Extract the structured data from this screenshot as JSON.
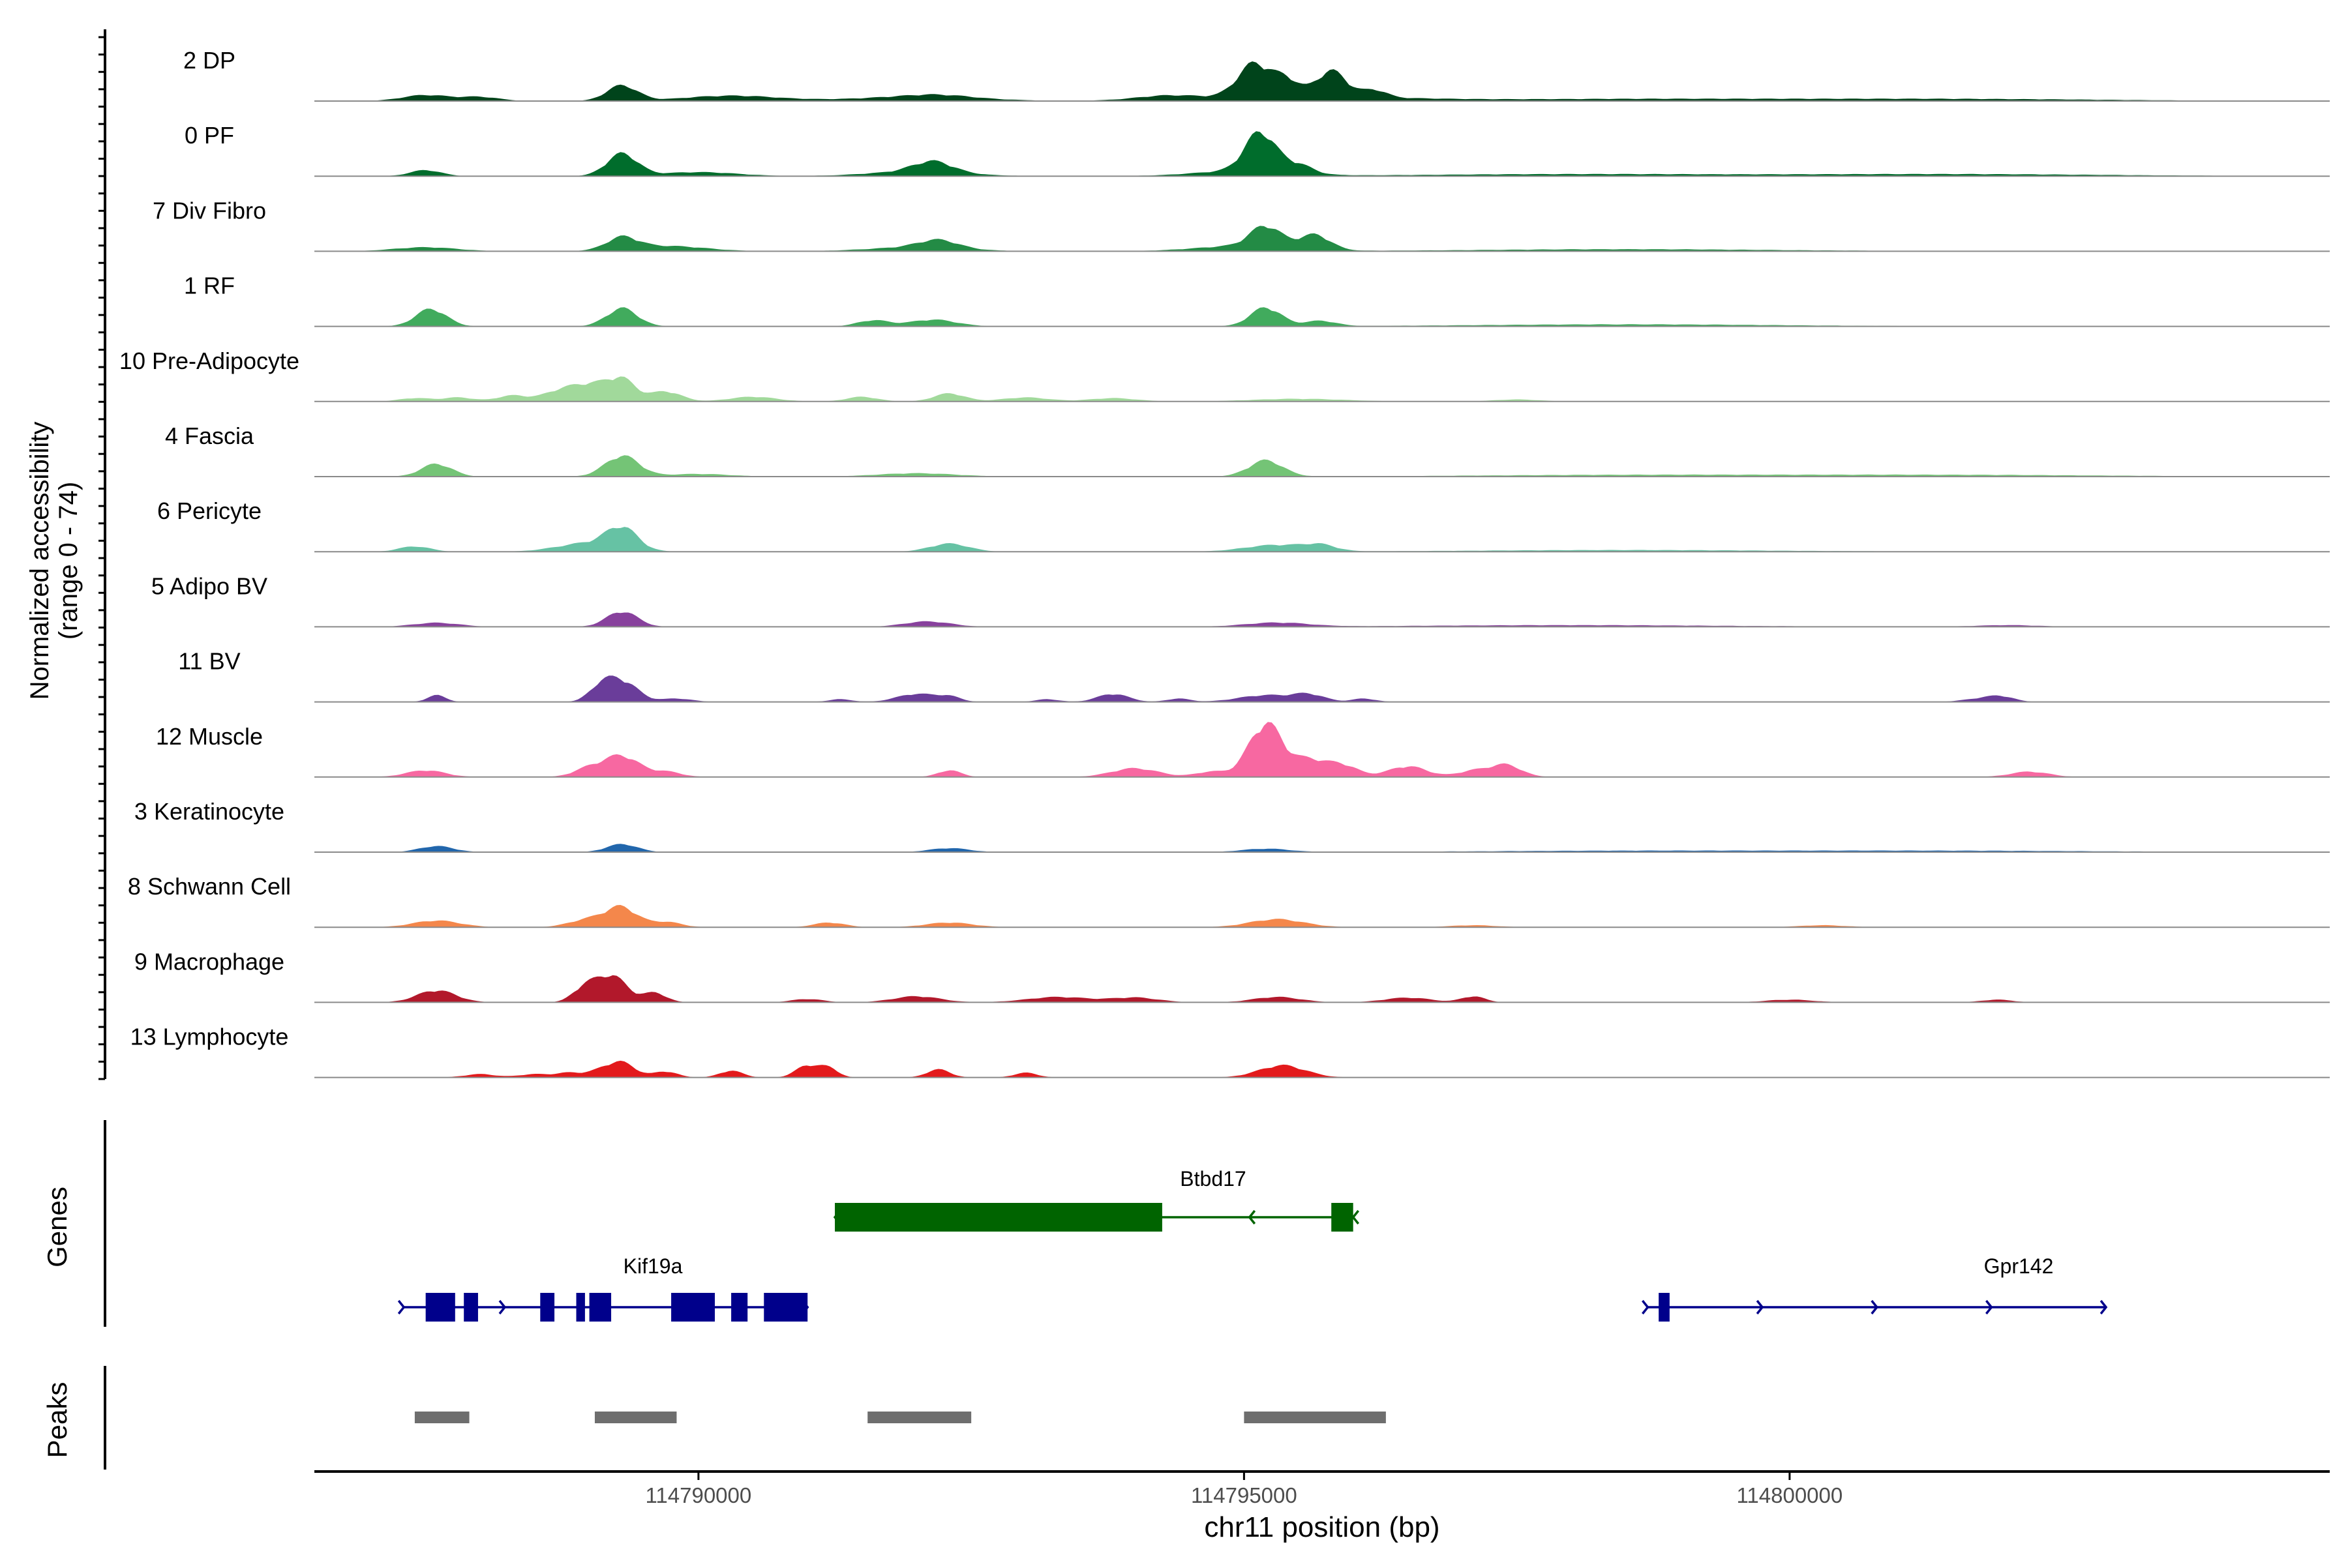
{
  "chart_data": {
    "type": "area",
    "title": "",
    "ylabel_line1": "Normalized accessibility",
    "ylabel_line2": "(range 0 - 74)",
    "yrange": [
      0,
      74
    ],
    "xlabel": "chr11 position (bp)",
    "xlim": [
      114786480,
      114804950
    ],
    "xticks": [
      {
        "value": 114790000,
        "label": "114790000"
      },
      {
        "value": 114795000,
        "label": "114795000"
      },
      {
        "value": 114800000,
        "label": "114800000"
      }
    ],
    "tracks": [
      {
        "name": "2 DP",
        "color": "#00441b",
        "peaks": [
          [
            114787500,
            0.9,
            300
          ],
          [
            114788000,
            0.6,
            250
          ],
          [
            114790300,
            0.8,
            600
          ],
          [
            114792000,
            0.6,
            800
          ],
          [
            114792200,
            0.4,
            400
          ],
          [
            114795500,
            0.7,
            1200
          ],
          [
            114789300,
            2.3,
            200
          ],
          [
            114795100,
            5.0,
            220
          ],
          [
            114795400,
            2.2,
            150
          ],
          [
            114795800,
            3.8,
            200
          ],
          [
            114796200,
            1.1,
            150
          ],
          [
            114794300,
            0.6,
            400
          ],
          [
            114798500,
            0.3,
            2000
          ],
          [
            114801500,
            0.3,
            2000
          ]
        ]
      },
      {
        "name": "0 PF",
        "color": "#006d2c",
        "peaks": [
          [
            114787500,
            0.9,
            200
          ],
          [
            114790000,
            0.6,
            500
          ],
          [
            114792000,
            0.7,
            600
          ],
          [
            114795000,
            0.8,
            600
          ],
          [
            114789300,
            3.3,
            200
          ],
          [
            114792150,
            1.6,
            250
          ],
          [
            114795150,
            5.8,
            200
          ],
          [
            114795500,
            1.3,
            180
          ],
          [
            114798000,
            0.3,
            2000
          ],
          [
            114801500,
            0.3,
            2000
          ]
        ]
      },
      {
        "name": "7 Div Fibro",
        "color": "#238b45",
        "peaks": [
          [
            114787500,
            0.6,
            400
          ],
          [
            114789700,
            0.8,
            500
          ],
          [
            114792000,
            0.6,
            600
          ],
          [
            114795000,
            0.8,
            600
          ],
          [
            114789300,
            1.8,
            200
          ],
          [
            114792200,
            1.2,
            250
          ],
          [
            114795200,
            3.1,
            200
          ],
          [
            114795650,
            2.2,
            200
          ],
          [
            114798500,
            0.3,
            2000
          ]
        ]
      },
      {
        "name": "1 RF",
        "color": "#41ab5d",
        "peaks": [
          [
            114789300,
            2.7,
            200
          ],
          [
            114787550,
            2.6,
            200
          ],
          [
            114795200,
            2.8,
            200
          ],
          [
            114792150,
            1.0,
            300
          ],
          [
            114791600,
            0.9,
            200
          ],
          [
            114795700,
            0.8,
            200
          ],
          [
            114798500,
            0.3,
            2000
          ]
        ]
      },
      {
        "name": "10 Pre-Adipocyte",
        "color": "#a1d99b",
        "peaks": [
          [
            114789000,
            2.5,
            250
          ],
          [
            114789300,
            3.0,
            180
          ],
          [
            114789700,
            1.5,
            200
          ],
          [
            114788300,
            0.9,
            200
          ],
          [
            114788700,
            1.2,
            200
          ],
          [
            114787800,
            0.6,
            200
          ],
          [
            114787400,
            0.5,
            200
          ],
          [
            114790500,
            0.7,
            300
          ],
          [
            114791500,
            0.7,
            200
          ],
          [
            114792300,
            1.2,
            200
          ],
          [
            114793000,
            0.6,
            300
          ],
          [
            114793800,
            0.5,
            300
          ],
          [
            114795500,
            0.4,
            600
          ],
          [
            114797500,
            0.3,
            300
          ]
        ]
      },
      {
        "name": "4 Fascia",
        "color": "#74c476",
        "peaks": [
          [
            114787600,
            1.9,
            200
          ],
          [
            114789300,
            3.1,
            220
          ],
          [
            114795200,
            2.4,
            220
          ],
          [
            114792000,
            0.5,
            500
          ],
          [
            114790000,
            0.4,
            400
          ],
          [
            114798500,
            0.25,
            2000
          ],
          [
            114801500,
            0.25,
            2000
          ]
        ]
      },
      {
        "name": "6 Pericyte",
        "color": "#66c2a4",
        "peaks": [
          [
            114787400,
            0.8,
            200
          ],
          [
            114789000,
            1.3,
            400
          ],
          [
            114789300,
            3.1,
            200
          ],
          [
            114792300,
            1.2,
            250
          ],
          [
            114795300,
            1.0,
            400
          ],
          [
            114795700,
            0.8,
            200
          ],
          [
            114798500,
            0.25,
            2000
          ]
        ]
      },
      {
        "name": "5 Adipo BV",
        "color": "#88419d",
        "peaks": [
          [
            114787600,
            0.6,
            300
          ],
          [
            114789300,
            2.3,
            200
          ],
          [
            114792100,
            0.8,
            300
          ],
          [
            114795300,
            0.6,
            400
          ],
          [
            114798000,
            0.25,
            2000
          ],
          [
            114802000,
            0.25,
            400
          ]
        ]
      },
      {
        "name": "11 BV",
        "color": "#6a3d9a",
        "peaks": [
          [
            114787600,
            1.0,
            120
          ],
          [
            114789300,
            3.1,
            200
          ],
          [
            114789100,
            2.0,
            150
          ],
          [
            114789800,
            0.5,
            200
          ],
          [
            114791300,
            0.4,
            150
          ],
          [
            114792000,
            1.2,
            250
          ],
          [
            114792300,
            0.7,
            150
          ],
          [
            114793200,
            0.4,
            150
          ],
          [
            114793800,
            1.2,
            200
          ],
          [
            114794400,
            0.5,
            150
          ],
          [
            114795200,
            1.0,
            350
          ],
          [
            114795600,
            1.0,
            200
          ],
          [
            114796100,
            0.5,
            150
          ],
          [
            114801800,
            0.6,
            250
          ],
          [
            114801950,
            0.5,
            150
          ]
        ]
      },
      {
        "name": "12 Muscle",
        "color": "#f768a1",
        "peaks": [
          [
            114787500,
            1.0,
            250
          ],
          [
            114789300,
            3.1,
            220
          ],
          [
            114789000,
            1.3,
            200
          ],
          [
            114789700,
            0.8,
            200
          ],
          [
            114792300,
            1.0,
            150
          ],
          [
            114794000,
            1.3,
            300
          ],
          [
            114795200,
            8.0,
            220
          ],
          [
            114795600,
            2.4,
            200
          ],
          [
            114795900,
            1.8,
            200
          ],
          [
            114796500,
            1.6,
            250
          ],
          [
            114797100,
            0.9,
            200
          ],
          [
            114797400,
            1.8,
            200
          ],
          [
            114802200,
            0.8,
            250
          ],
          [
            114794700,
            0.8,
            200
          ]
        ]
      },
      {
        "name": "3 Keratinocyte",
        "color": "#2166ac",
        "peaks": [
          [
            114787600,
            0.9,
            220
          ],
          [
            114789300,
            1.2,
            200
          ],
          [
            114792300,
            0.6,
            250
          ],
          [
            114795200,
            0.5,
            300
          ],
          [
            114798500,
            0.2,
            2000
          ],
          [
            114801500,
            0.2,
            2000
          ]
        ]
      },
      {
        "name": "8 Schwann Cell",
        "color": "#f4874b",
        "peaks": [
          [
            114787600,
            1.0,
            300
          ],
          [
            114789300,
            2.8,
            200
          ],
          [
            114789000,
            1.2,
            250
          ],
          [
            114789700,
            0.8,
            200
          ],
          [
            114791200,
            0.7,
            200
          ],
          [
            114792300,
            0.7,
            300
          ],
          [
            114795300,
            1.2,
            350
          ],
          [
            114797100,
            0.3,
            300
          ],
          [
            114800300,
            0.3,
            300
          ]
        ]
      },
      {
        "name": "9 Macrophage",
        "color": "#b2182b",
        "peaks": [
          [
            114787600,
            1.8,
            250
          ],
          [
            114789200,
            4.0,
            200
          ],
          [
            114788950,
            2.0,
            150
          ],
          [
            114789600,
            1.4,
            150
          ],
          [
            114791000,
            0.5,
            200
          ],
          [
            114792000,
            0.9,
            300
          ],
          [
            114793300,
            0.8,
            400
          ],
          [
            114794000,
            0.7,
            300
          ],
          [
            114795300,
            0.8,
            300
          ],
          [
            114796500,
            0.7,
            300
          ],
          [
            114797100,
            0.9,
            150
          ],
          [
            114800000,
            0.4,
            300
          ],
          [
            114801900,
            0.4,
            200
          ]
        ]
      },
      {
        "name": "13 Lymphocyte",
        "color": "#e31a1c",
        "peaks": [
          [
            114788000,
            0.5,
            200
          ],
          [
            114788500,
            0.5,
            200
          ],
          [
            114789100,
            0.9,
            200
          ],
          [
            114789300,
            2.0,
            180
          ],
          [
            114789700,
            0.9,
            150
          ],
          [
            114790300,
            1.0,
            150
          ],
          [
            114791000,
            1.8,
            150
          ],
          [
            114791200,
            1.3,
            120
          ],
          [
            114792200,
            1.2,
            150
          ],
          [
            114793000,
            0.7,
            150
          ],
          [
            114795350,
            1.8,
            300
          ],
          [
            114788800,
            0.6,
            150
          ]
        ]
      }
    ],
    "genes": [
      {
        "name": "Btbd17",
        "strand": "-",
        "color": "#006400",
        "row": 1,
        "start": 114791250,
        "end": 114796000,
        "exons": [
          [
            114791250,
            114794250
          ],
          [
            114795800,
            114796000
          ]
        ]
      },
      {
        "name": "Kif19a",
        "strand": "+",
        "color": "#00008b",
        "row": 2,
        "start": 114787300,
        "end": 114791000,
        "exons": [
          [
            114787500,
            114787770
          ],
          [
            114787850,
            114787980
          ],
          [
            114788550,
            114788680
          ],
          [
            114788880,
            114788960
          ],
          [
            114789000,
            114789200
          ],
          [
            114789750,
            114790150
          ],
          [
            114790300,
            114790450
          ],
          [
            114790600,
            114791000
          ]
        ]
      },
      {
        "name": "Gpr142",
        "strand": "+",
        "color": "#00008b",
        "row": 2,
        "start": 114798700,
        "end": 114802900,
        "exons": [
          [
            114798800,
            114798900
          ]
        ]
      }
    ],
    "peaks": [
      [
        114787400,
        114787900
      ],
      [
        114789050,
        114789800
      ],
      [
        114791550,
        114792500
      ],
      [
        114795000,
        114796300
      ]
    ],
    "peak_color": "#6e6e6e",
    "panel_labels": {
      "genes": "Genes",
      "peaks": "Peaks"
    }
  }
}
